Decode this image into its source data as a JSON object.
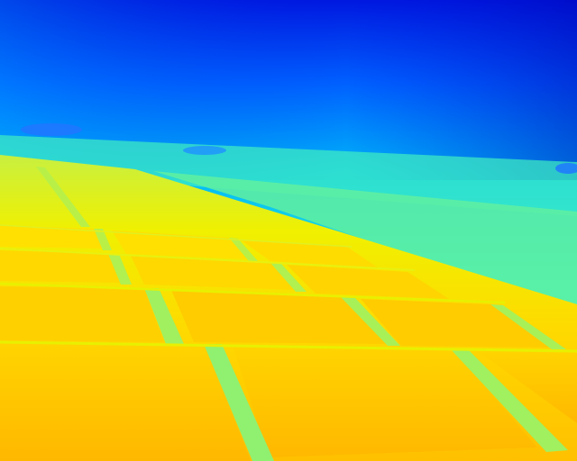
{
  "scene": {
    "subject": "thermal-image-solar-panel-field",
    "palette": {
      "sky_top": "#0000d0",
      "sky_mid": "#0078ff",
      "horizon": "#3cf0c8",
      "far_ground": "#7cf08c",
      "mid_ground": "#e6f000",
      "panel_warm": "#ffc800",
      "panel_hot": "#ffb400",
      "gap_cool": "#8cf070",
      "distant_object": "#1e78ff"
    }
  }
}
